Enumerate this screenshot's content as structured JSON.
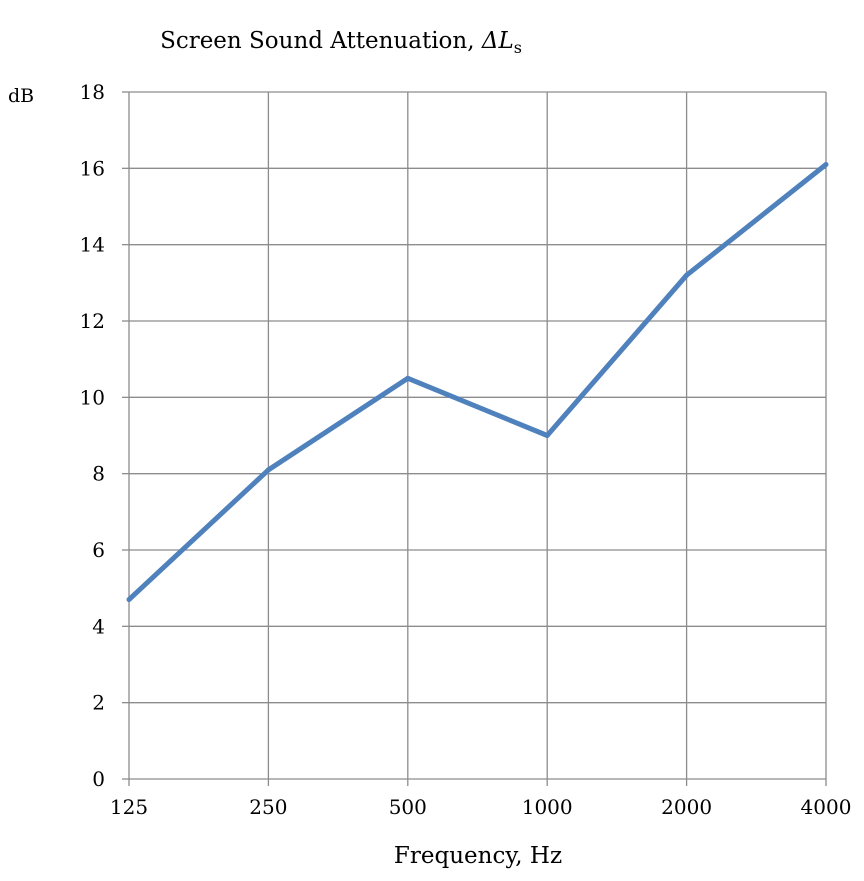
{
  "chart_data": {
    "type": "line",
    "title": {
      "main": "Screen Sound Attenuation, ",
      "symbol": "ΔL",
      "subscript": "s"
    },
    "xlabel": "Frequency, Hz",
    "ylabel": "dB",
    "categories": [
      "125",
      "250",
      "500",
      "1000",
      "2000",
      "4000"
    ],
    "series": [
      {
        "values": [
          4.7,
          8.1,
          10.5,
          9.0,
          13.2,
          16.1
        ],
        "color": "#4f81bd"
      }
    ],
    "ylim": [
      0,
      18
    ],
    "yticks": [
      0,
      2,
      4,
      6,
      8,
      10,
      12,
      14,
      16,
      18
    ],
    "grid": true,
    "grid_color": "#8c8c8c",
    "legend": "none"
  }
}
